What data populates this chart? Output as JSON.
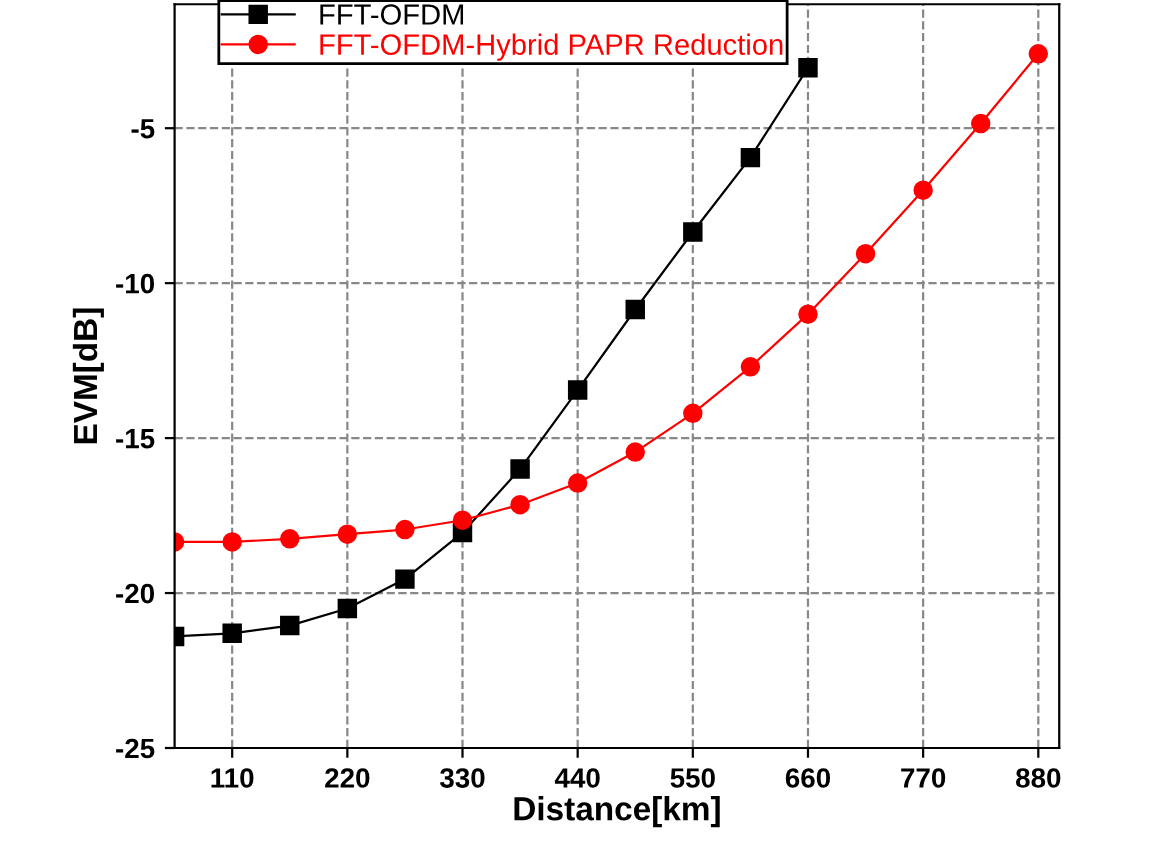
{
  "chart_data": {
    "type": "line",
    "xlabel": "Distance[km]",
    "ylabel": "EVM[dB]",
    "xlim": [
      55,
      900
    ],
    "xticks": [
      110,
      220,
      330,
      440,
      550,
      660,
      770,
      880
    ],
    "ylim": [
      -25,
      -1
    ],
    "yticks": [
      -25,
      -20,
      -15,
      -10,
      -5
    ],
    "grid": true,
    "legend": "top left",
    "line_style": "solid",
    "series": [
      {
        "name": "FFT-OFDM",
        "color": "#000000",
        "marker": "square",
        "x": [
          55,
          110,
          165,
          220,
          275,
          330,
          385,
          440,
          495,
          550,
          605,
          660
        ],
        "values": [
          -21.4,
          -21.3,
          -21.05,
          -20.5,
          -19.55,
          -18.05,
          -16.0,
          -13.45,
          -10.85,
          -8.35,
          -5.95,
          -3.05
        ]
      },
      {
        "name": "FFT-OFDM-Hybrid PAPR Reduction",
        "color": "#ff0000",
        "marker": "circle",
        "x": [
          55,
          110,
          165,
          220,
          275,
          330,
          385,
          440,
          495,
          550,
          605,
          660,
          715,
          770,
          825,
          880
        ],
        "values": [
          -18.35,
          -18.35,
          -18.25,
          -18.1,
          -17.95,
          -17.65,
          -17.15,
          -16.45,
          -15.45,
          -14.2,
          -12.7,
          -11.0,
          -9.05,
          -7.0,
          -4.85,
          -2.6
        ]
      }
    ]
  }
}
